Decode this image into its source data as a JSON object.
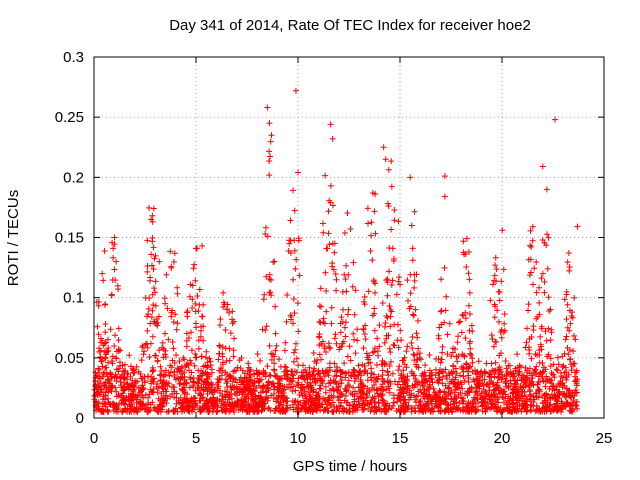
{
  "chart_data": {
    "type": "scatter",
    "title": "Day 341 of 2014, Rate Of TEC Index for receiver hoe2",
    "xlabel": "GPS time / hours",
    "ylabel": "ROTI / TECUs",
    "xlim": [
      0,
      25
    ],
    "ylim": [
      0,
      0.3
    ],
    "xticks": [
      "0",
      "5",
      "10",
      "15",
      "20",
      "25"
    ],
    "yticks": [
      "0",
      "0.05",
      "0.1",
      "0.15",
      "0.2",
      "0.25",
      "0.3"
    ],
    "grid": true,
    "marker": "+",
    "color": "#ff0000",
    "series": [
      {
        "name": "ROTI",
        "notable_points": [
          {
            "x": 0.4,
            "y": 0.12
          },
          {
            "x": 1.0,
            "y": 0.15
          },
          {
            "x": 2.8,
            "y": 0.165
          },
          {
            "x": 3.2,
            "y": 0.13
          },
          {
            "x": 5.3,
            "y": 0.143
          },
          {
            "x": 8.5,
            "y": 0.258
          },
          {
            "x": 8.6,
            "y": 0.245
          },
          {
            "x": 8.7,
            "y": 0.235
          },
          {
            "x": 9.9,
            "y": 0.272
          },
          {
            "x": 10.0,
            "y": 0.204
          },
          {
            "x": 11.6,
            "y": 0.244
          },
          {
            "x": 11.7,
            "y": 0.232
          },
          {
            "x": 11.6,
            "y": 0.179
          },
          {
            "x": 14.2,
            "y": 0.225
          },
          {
            "x": 14.3,
            "y": 0.215
          },
          {
            "x": 15.5,
            "y": 0.2
          },
          {
            "x": 17.2,
            "y": 0.201
          },
          {
            "x": 17.2,
            "y": 0.184
          },
          {
            "x": 22.0,
            "y": 0.209
          },
          {
            "x": 22.2,
            "y": 0.19
          },
          {
            "x": 22.6,
            "y": 0.248
          },
          {
            "x": 23.7,
            "y": 0.159
          }
        ],
        "bursts": [
          {
            "center": 0.4,
            "width": 0.8,
            "peak": 0.125
          },
          {
            "center": 1.0,
            "width": 0.6,
            "peak": 0.15
          },
          {
            "center": 2.8,
            "width": 1.0,
            "peak": 0.16
          },
          {
            "center": 3.8,
            "width": 1.0,
            "peak": 0.14
          },
          {
            "center": 5.0,
            "width": 1.2,
            "peak": 0.13
          },
          {
            "center": 6.5,
            "width": 1.0,
            "peak": 0.11
          },
          {
            "center": 8.6,
            "width": 0.8,
            "peak": 0.2
          },
          {
            "center": 9.8,
            "width": 1.0,
            "peak": 0.19
          },
          {
            "center": 11.5,
            "width": 1.2,
            "peak": 0.19
          },
          {
            "center": 12.5,
            "width": 1.0,
            "peak": 0.17
          },
          {
            "center": 13.6,
            "width": 1.0,
            "peak": 0.18
          },
          {
            "center": 14.6,
            "width": 1.2,
            "peak": 0.19
          },
          {
            "center": 15.6,
            "width": 0.8,
            "peak": 0.17
          },
          {
            "center": 17.2,
            "width": 1.0,
            "peak": 0.12
          },
          {
            "center": 18.2,
            "width": 1.0,
            "peak": 0.14
          },
          {
            "center": 19.8,
            "width": 1.0,
            "peak": 0.15
          },
          {
            "center": 21.5,
            "width": 0.8,
            "peak": 0.16
          },
          {
            "center": 22.1,
            "width": 0.8,
            "peak": 0.17
          },
          {
            "center": 23.3,
            "width": 0.8,
            "peak": 0.13
          }
        ],
        "x_range": [
          0,
          23.7
        ],
        "baseline": [
          0.005,
          0.04
        ],
        "point_count": 3200
      }
    ]
  }
}
